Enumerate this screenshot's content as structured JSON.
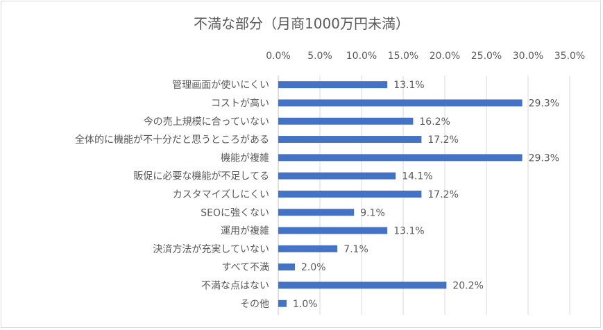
{
  "chart_data": {
    "type": "bar",
    "orientation": "horizontal",
    "title": "不満な部分（月商1000万円未満）",
    "xlabel": "",
    "ylabel": "",
    "xlim": [
      0,
      35
    ],
    "x_ticks": [
      "0.0%",
      "5.0%",
      "10.0%",
      "15.0%",
      "20.0%",
      "25.0%",
      "30.0%",
      "35.0%"
    ],
    "x_tick_values": [
      0,
      5,
      10,
      15,
      20,
      25,
      30,
      35
    ],
    "x_axis_position": "top",
    "grid": true,
    "legend": "none",
    "bar_color": "#4472c4",
    "categories": [
      "管理画面が使いにくい",
      "コストが高い",
      "今の売上規模に合っていない",
      "全体的に機能が不十分だと思うところがある",
      "機能が複雑",
      "販促に必要な機能が不足してる",
      "カスタマイズしにくい",
      "SEOに強くない",
      "運用が複雑",
      "決済方法が充実していない",
      "すべて不満",
      "不満な点はない",
      "その他"
    ],
    "values": [
      13.1,
      29.3,
      16.2,
      17.2,
      29.3,
      14.1,
      17.2,
      9.1,
      13.1,
      7.1,
      2.0,
      20.2,
      1.0
    ],
    "data_labels": [
      "13.1%",
      "29.3%",
      "16.2%",
      "17.2%",
      "29.3%",
      "14.1%",
      "17.2%",
      "9.1%",
      "13.1%",
      "7.1%",
      "2.0%",
      "20.2%",
      "1.0%"
    ]
  }
}
